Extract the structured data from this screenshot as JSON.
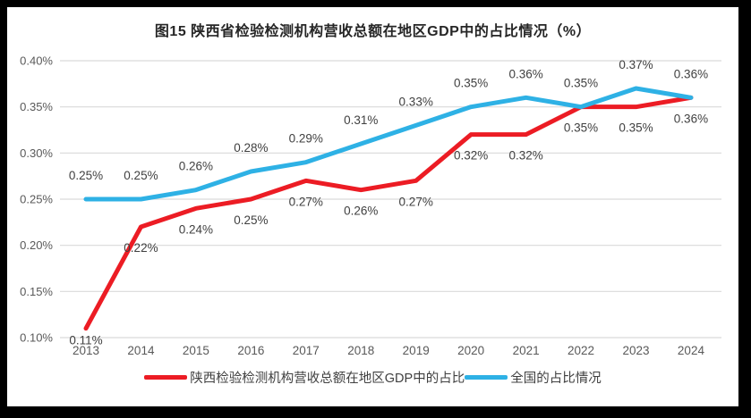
{
  "title": "图15 陕西省检验检测机构营收总额在地区GDP中的占比情况（%）",
  "chart_data": {
    "type": "line",
    "categories": [
      "2013",
      "2014",
      "2015",
      "2016",
      "2017",
      "2018",
      "2019",
      "2020",
      "2021",
      "2022",
      "2023",
      "2024"
    ],
    "series": [
      {
        "name": "陕西检验检测机构营收总额在地区GDP中的占比",
        "color": "#EC1C24",
        "values": [
          0.11,
          0.22,
          0.24,
          0.25,
          0.27,
          0.26,
          0.27,
          0.32,
          0.32,
          0.35,
          0.35,
          0.36
        ],
        "labels": [
          "0.11%",
          "0.22%",
          "0.24%",
          "0.25%",
          "0.27%",
          "0.26%",
          "0.27%",
          "0.32%",
          "0.32%",
          "0.35%",
          "0.35%",
          "0.36%"
        ],
        "label_position": "below"
      },
      {
        "name": "全国的占比情况",
        "color": "#2EB1E5",
        "values": [
          0.25,
          0.25,
          0.26,
          0.28,
          0.29,
          0.31,
          0.33,
          0.35,
          0.36,
          0.35,
          0.37,
          0.36
        ],
        "labels": [
          "0.25%",
          "0.25%",
          "0.26%",
          "0.28%",
          "0.29%",
          "0.31%",
          "0.33%",
          "0.35%",
          "0.36%",
          "0.35%",
          "0.37%",
          "0.36%"
        ],
        "label_position": "above"
      }
    ],
    "xlabel": "",
    "ylabel": "",
    "ylim": [
      0.1,
      0.4
    ],
    "ytick_step": 0.05,
    "ytick_labels": [
      "0.40%",
      "0.35%",
      "0.30%",
      "0.25%",
      "0.20%",
      "0.15%",
      "0.10%"
    ],
    "grid": "horizontal",
    "legend_position": "bottom",
    "colors": {
      "gridline": "#D9D9D9",
      "axis_text": "#595959",
      "data_label_text": "#404040",
      "title_text": "#262626",
      "background": "#FFFFFF",
      "outer_border": "#000000"
    }
  }
}
